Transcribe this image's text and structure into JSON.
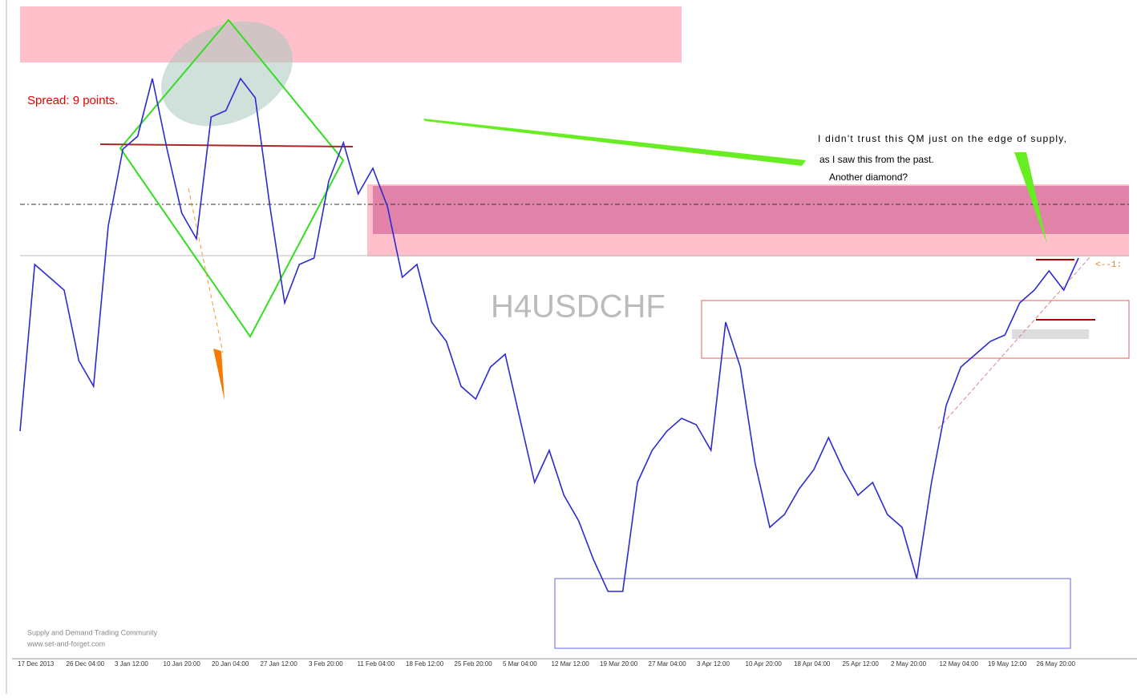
{
  "chart_data": {
    "type": "line",
    "title": "H4USDCHF",
    "spread_label": "Spread: 9 points.",
    "annotation": [
      "I didn't trust this  QM just on the edge of supply,",
      "as I saw this from the past.",
      "Another diamond?"
    ],
    "watermark": [
      "Supply and Demand Trading Community",
      "www.set-and-forget.com"
    ],
    "ratio_label": "<--1:",
    "time_labels": [
      "17 Dec 2013",
      "26 Dec 04:00",
      "3 Jan 12:00",
      "10 Jan 20:00",
      "20 Jan 04:00",
      "27 Jan 12:00",
      "3 Feb 20:00",
      "11 Feb 04:00",
      "18 Feb 12:00",
      "25 Feb 20:00",
      "5 Mar 04:00",
      "12 Mar 12:00",
      "19 Mar 20:00",
      "27 Mar 04:00",
      "3 Apr 12:00",
      "10 Apr 20:00",
      "18 Apr 04:00",
      "25 Apr 12:00",
      "2 May 20:00",
      "12 May 04:00",
      "19 May 12:00",
      "26 May 20:00"
    ],
    "series": [
      {
        "color": "#2b2bd0",
        "values": [
          34,
          60,
          58,
          56,
          45,
          41,
          66,
          78,
          80,
          89,
          78,
          68,
          64,
          83,
          84,
          89,
          86,
          69,
          54,
          60,
          61,
          73,
          79,
          71,
          75,
          69,
          58,
          60,
          51,
          48,
          41,
          39,
          44,
          46,
          36,
          26,
          31,
          24,
          20,
          14,
          9,
          9,
          26,
          31,
          34,
          36,
          35,
          31,
          51,
          44,
          29,
          19,
          21,
          25,
          28,
          33,
          28,
          24,
          26,
          21,
          19,
          11,
          26,
          38,
          44,
          46,
          48,
          49,
          54,
          56,
          59,
          56,
          61
        ]
      }
    ],
    "ylim": [
      0,
      100
    ]
  }
}
